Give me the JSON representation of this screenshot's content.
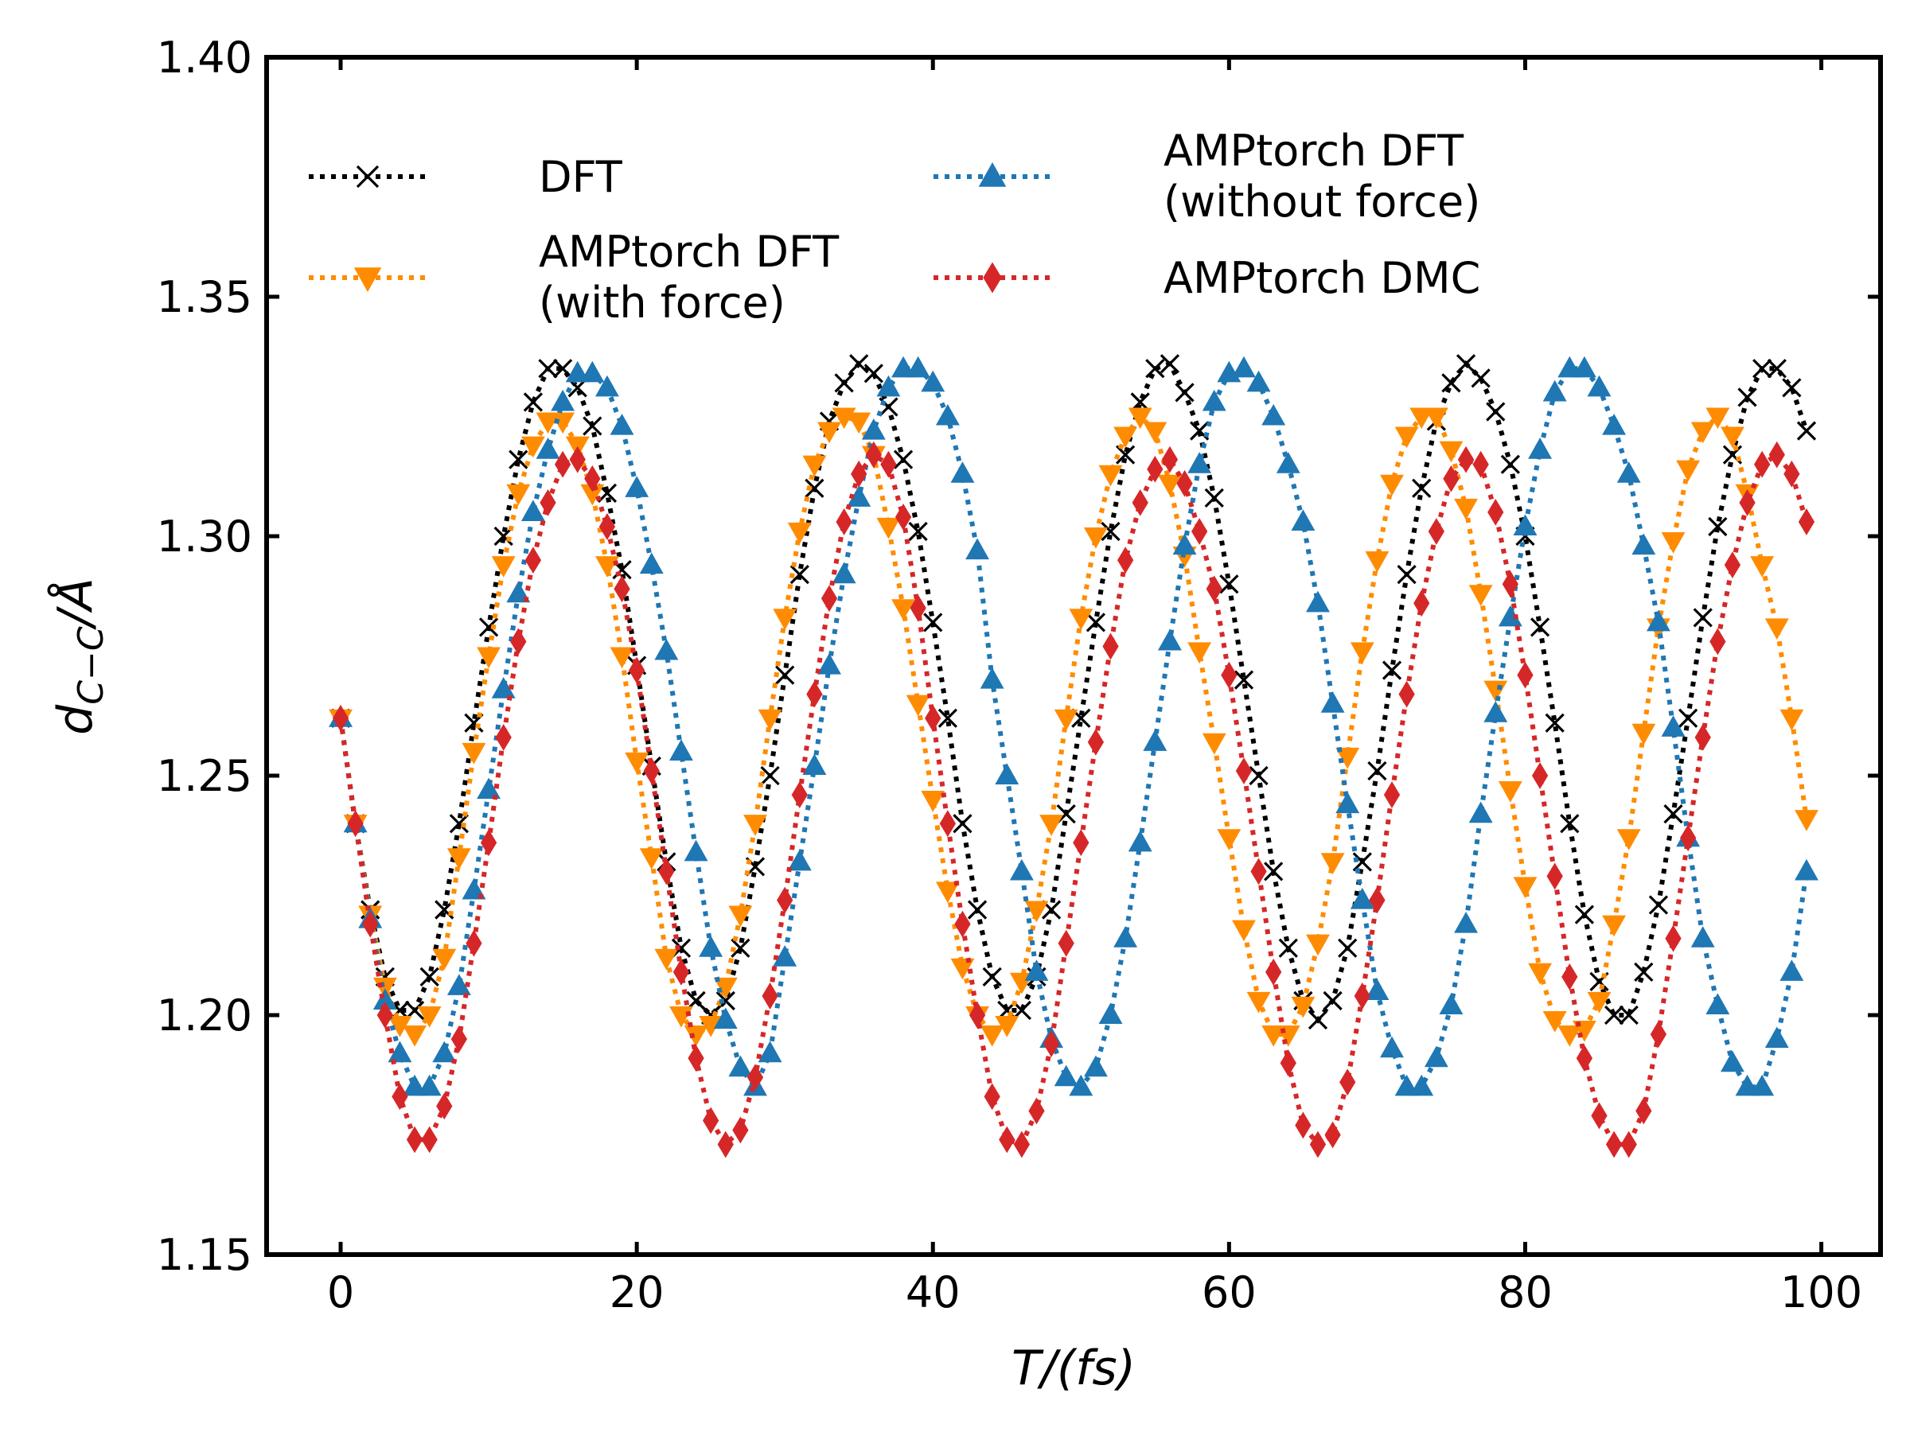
{
  "chart_data": {
    "type": "line",
    "xlabel": "T/(fs)",
    "ylabel": "d_{C-C}/Å",
    "xlim": [
      -5,
      104
    ],
    "ylim": [
      1.15,
      1.4
    ],
    "x_ticks": [
      0,
      20,
      40,
      60,
      80,
      100
    ],
    "y_ticks": [
      "1.15",
      "1.20",
      "1.25",
      "1.30",
      "1.35",
      "1.40"
    ],
    "grid": false,
    "legend_position": "top-left",
    "x": [
      0,
      1,
      2,
      3,
      4,
      5,
      6,
      7,
      8,
      9,
      10,
      11,
      12,
      13,
      14,
      15,
      16,
      17,
      18,
      19,
      20,
      21,
      22,
      23,
      24,
      25,
      26,
      27,
      28,
      29,
      30,
      31,
      32,
      33,
      34,
      35,
      36,
      37,
      38,
      39,
      40,
      41,
      42,
      43,
      44,
      45,
      46,
      47,
      48,
      49,
      50,
      51,
      52,
      53,
      54,
      55,
      56,
      57,
      58,
      59,
      60,
      61,
      62,
      63,
      64,
      65,
      66,
      67,
      68,
      69,
      70,
      71,
      72,
      73,
      74,
      75,
      76,
      77,
      78,
      79,
      80,
      81,
      82,
      83,
      84,
      85,
      86,
      87,
      88,
      89,
      90,
      91,
      92,
      93,
      94,
      95,
      96,
      97,
      98,
      99
    ],
    "series": [
      {
        "name": "DFT",
        "label_lines": [
          "DFT"
        ],
        "color": "#000000",
        "marker": "x",
        "values": [
          1.262,
          1.24,
          1.222,
          1.208,
          1.201,
          1.201,
          1.208,
          1.222,
          1.24,
          1.261,
          1.281,
          1.3,
          1.316,
          1.328,
          1.335,
          1.335,
          1.331,
          1.323,
          1.309,
          1.293,
          1.273,
          1.252,
          1.232,
          1.214,
          1.203,
          1.2,
          1.203,
          1.214,
          1.231,
          1.25,
          1.271,
          1.292,
          1.31,
          1.324,
          1.332,
          1.336,
          1.334,
          1.327,
          1.316,
          1.301,
          1.282,
          1.262,
          1.24,
          1.222,
          1.208,
          1.201,
          1.201,
          1.208,
          1.222,
          1.242,
          1.262,
          1.282,
          1.301,
          1.317,
          1.328,
          1.335,
          1.336,
          1.33,
          1.322,
          1.308,
          1.29,
          1.27,
          1.25,
          1.23,
          1.214,
          1.203,
          1.199,
          1.203,
          1.214,
          1.232,
          1.251,
          1.272,
          1.292,
          1.31,
          1.324,
          1.332,
          1.336,
          1.333,
          1.326,
          1.315,
          1.3,
          1.281,
          1.261,
          1.24,
          1.221,
          1.207,
          1.2,
          1.2,
          1.209,
          1.223,
          1.242,
          1.262,
          1.283,
          1.302,
          1.317,
          1.329,
          1.335,
          1.335,
          1.331,
          1.322
        ]
      },
      {
        "name": "AMPtorch DFT (with force)",
        "label_lines": [
          "AMPtorch DFT",
          "(with force)"
        ],
        "color": "#ff8c00",
        "marker": "triangle-down",
        "values": [
          1.262,
          1.24,
          1.221,
          1.206,
          1.198,
          1.196,
          1.2,
          1.212,
          1.233,
          1.255,
          1.275,
          1.294,
          1.309,
          1.319,
          1.324,
          1.324,
          1.319,
          1.309,
          1.294,
          1.275,
          1.253,
          1.233,
          1.212,
          1.2,
          1.196,
          1.198,
          1.206,
          1.221,
          1.24,
          1.262,
          1.283,
          1.301,
          1.315,
          1.322,
          1.325,
          1.324,
          1.317,
          1.302,
          1.285,
          1.265,
          1.245,
          1.226,
          1.21,
          1.2,
          1.196,
          1.198,
          1.207,
          1.222,
          1.24,
          1.262,
          1.283,
          1.3,
          1.313,
          1.321,
          1.325,
          1.322,
          1.311,
          1.296,
          1.276,
          1.257,
          1.237,
          1.218,
          1.203,
          1.196,
          1.196,
          1.202,
          1.215,
          1.232,
          1.254,
          1.276,
          1.295,
          1.311,
          1.321,
          1.325,
          1.325,
          1.318,
          1.306,
          1.288,
          1.268,
          1.247,
          1.227,
          1.209,
          1.199,
          1.196,
          1.197,
          1.203,
          1.219,
          1.237,
          1.259,
          1.281,
          1.299,
          1.314,
          1.322,
          1.325,
          1.321,
          1.309,
          1.294,
          1.281,
          1.262,
          1.241
        ]
      },
      {
        "name": "AMPtorch DFT (without force)",
        "label_lines": [
          "AMPtorch DFT",
          "(without force)"
        ],
        "color": "#1f77b4",
        "marker": "triangle-up",
        "values": [
          1.262,
          1.24,
          1.22,
          1.203,
          1.192,
          1.185,
          1.185,
          1.192,
          1.206,
          1.226,
          1.247,
          1.268,
          1.288,
          1.305,
          1.318,
          1.328,
          1.334,
          1.334,
          1.331,
          1.323,
          1.31,
          1.294,
          1.276,
          1.255,
          1.234,
          1.214,
          1.199,
          1.189,
          1.185,
          1.192,
          1.212,
          1.232,
          1.252,
          1.273,
          1.292,
          1.308,
          1.322,
          1.331,
          1.335,
          1.335,
          1.332,
          1.325,
          1.313,
          1.297,
          1.27,
          1.25,
          1.23,
          1.209,
          1.195,
          1.187,
          1.185,
          1.189,
          1.2,
          1.216,
          1.236,
          1.257,
          1.278,
          1.298,
          1.315,
          1.328,
          1.334,
          1.335,
          1.332,
          1.325,
          1.315,
          1.303,
          1.286,
          1.265,
          1.244,
          1.224,
          1.205,
          1.193,
          1.185,
          1.185,
          1.191,
          1.202,
          1.219,
          1.242,
          1.263,
          1.283,
          1.302,
          1.318,
          1.33,
          1.335,
          1.335,
          1.331,
          1.323,
          1.313,
          1.298,
          1.282,
          1.26,
          1.237,
          1.216,
          1.202,
          1.19,
          1.185,
          1.185,
          1.195,
          1.209,
          1.23
        ]
      },
      {
        "name": "AMPtorch DMC",
        "label_lines": [
          "AMPtorch DMC"
        ],
        "color": "#d62728",
        "marker": "diamond",
        "values": [
          1.262,
          1.24,
          1.219,
          1.2,
          1.183,
          1.174,
          1.174,
          1.181,
          1.195,
          1.215,
          1.236,
          1.258,
          1.278,
          1.295,
          1.307,
          1.315,
          1.316,
          1.312,
          1.302,
          1.289,
          1.272,
          1.251,
          1.23,
          1.209,
          1.191,
          1.178,
          1.173,
          1.176,
          1.187,
          1.204,
          1.224,
          1.246,
          1.267,
          1.287,
          1.303,
          1.313,
          1.317,
          1.315,
          1.304,
          1.285,
          1.262,
          1.24,
          1.219,
          1.2,
          1.183,
          1.174,
          1.173,
          1.18,
          1.194,
          1.215,
          1.236,
          1.257,
          1.277,
          1.295,
          1.307,
          1.314,
          1.316,
          1.311,
          1.301,
          1.289,
          1.271,
          1.251,
          1.23,
          1.209,
          1.19,
          1.177,
          1.173,
          1.175,
          1.186,
          1.204,
          1.224,
          1.246,
          1.267,
          1.286,
          1.301,
          1.312,
          1.316,
          1.315,
          1.305,
          1.29,
          1.271,
          1.25,
          1.229,
          1.208,
          1.191,
          1.179,
          1.173,
          1.173,
          1.18,
          1.196,
          1.216,
          1.237,
          1.258,
          1.278,
          1.294,
          1.307,
          1.315,
          1.317,
          1.313,
          1.303
        ]
      }
    ]
  }
}
